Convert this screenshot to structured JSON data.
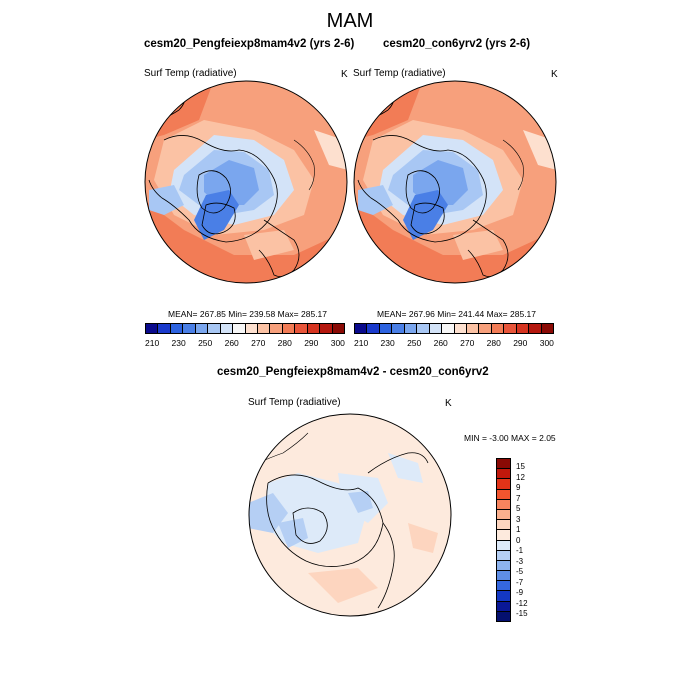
{
  "main_title": "MAM",
  "panel1": {
    "title": "cesm20_Pengfeiexp8mam4v2 (yrs 2-6)",
    "variable": "Surf Temp (radiative)",
    "units": "K",
    "stats": "MEAN= 267.85  Min= 239.58  Max= 285.17"
  },
  "panel2": {
    "title": "cesm20_con6yrv2 (yrs 2-6)",
    "variable": "Surf Temp (radiative)",
    "units": "K",
    "stats": "MEAN= 267.96  Min= 241.44  Max= 285.17"
  },
  "panel3": {
    "title": "cesm20_Pengfeiexp8mam4v2 - cesm20_con6yrv2",
    "variable": "Surf Temp (radiative)",
    "units": "K",
    "stats": "MIN =  -3.00 MAX =   2.05"
  },
  "abs_colorbar": {
    "labels": [
      "210",
      "230",
      "250",
      "260",
      "270",
      "280",
      "290",
      "300"
    ],
    "colors": [
      "#0a0a8c",
      "#1a3acc",
      "#2d63e0",
      "#4a7fe6",
      "#7aa6ee",
      "#a8c7f4",
      "#d3e3f8",
      "#f7f7f7",
      "#fde0cf",
      "#fbc2a4",
      "#f7a07c",
      "#f27c56",
      "#e8553a",
      "#d63420",
      "#b4170e",
      "#8a0a05"
    ]
  },
  "diff_colorbar": {
    "labels": [
      "15",
      "12",
      "9",
      "7",
      "5",
      "3",
      "1",
      "0",
      "-1",
      "-3",
      "-5",
      "-7",
      "-9",
      "-12",
      "-15"
    ],
    "colors": [
      "#8a0a05",
      "#c0180c",
      "#e23318",
      "#f2552e",
      "#f7845e",
      "#fbb08e",
      "#fdd5bf",
      "#fdeadd",
      "#ddeaf9",
      "#b5cff4",
      "#8db3ee",
      "#5f8ee6",
      "#3567de",
      "#1438c4",
      "#0a1896",
      "#05106e"
    ]
  }
}
